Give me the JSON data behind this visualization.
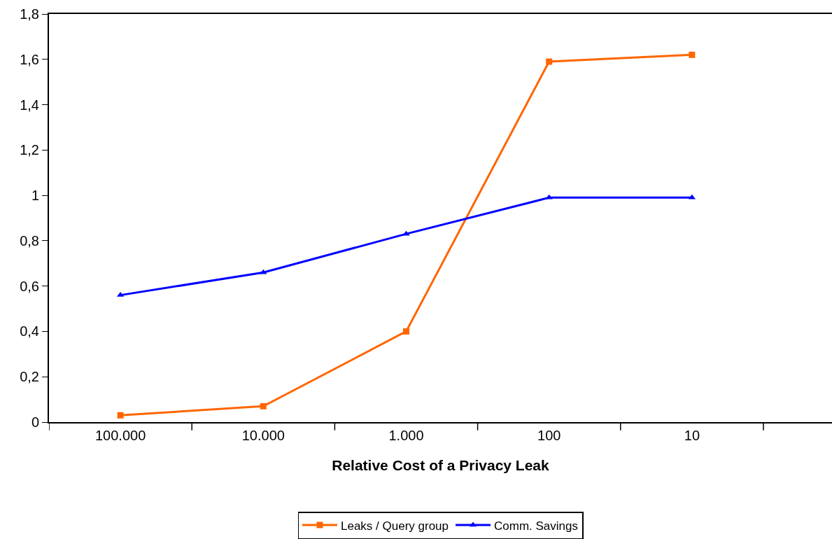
{
  "chart_data": {
    "type": "line",
    "xlabel": "Relative Cost of a Privacy Leak",
    "categories": [
      "100.000",
      "10.000",
      "1.000",
      "100",
      "10"
    ],
    "series": [
      {
        "name": "Leaks / Query group",
        "color": "#ff6600",
        "marker": "square",
        "values": [
          0.03,
          0.07,
          0.4,
          1.59,
          1.62
        ]
      },
      {
        "name": "Comm. Savings",
        "color": "#0000ff",
        "marker": "triangle",
        "values": [
          0.56,
          0.66,
          0.83,
          0.99,
          0.99
        ]
      }
    ],
    "ylim": [
      0,
      1.8
    ],
    "yticks": [
      0,
      {
        "value": 0.2,
        "label": "0,2"
      },
      {
        "value": 0.4,
        "label": "0,4"
      },
      {
        "value": 0.6,
        "label": "0,6"
      },
      {
        "value": 0.8,
        "label": "0,8"
      },
      1,
      {
        "value": 1.2,
        "label": "1,2"
      },
      {
        "value": 1.4,
        "label": "1,4"
      },
      {
        "value": 1.6,
        "label": "1,6"
      },
      {
        "value": 1.8,
        "label": "1,8"
      }
    ],
    "legend": "bottom",
    "line_style": "solid"
  }
}
